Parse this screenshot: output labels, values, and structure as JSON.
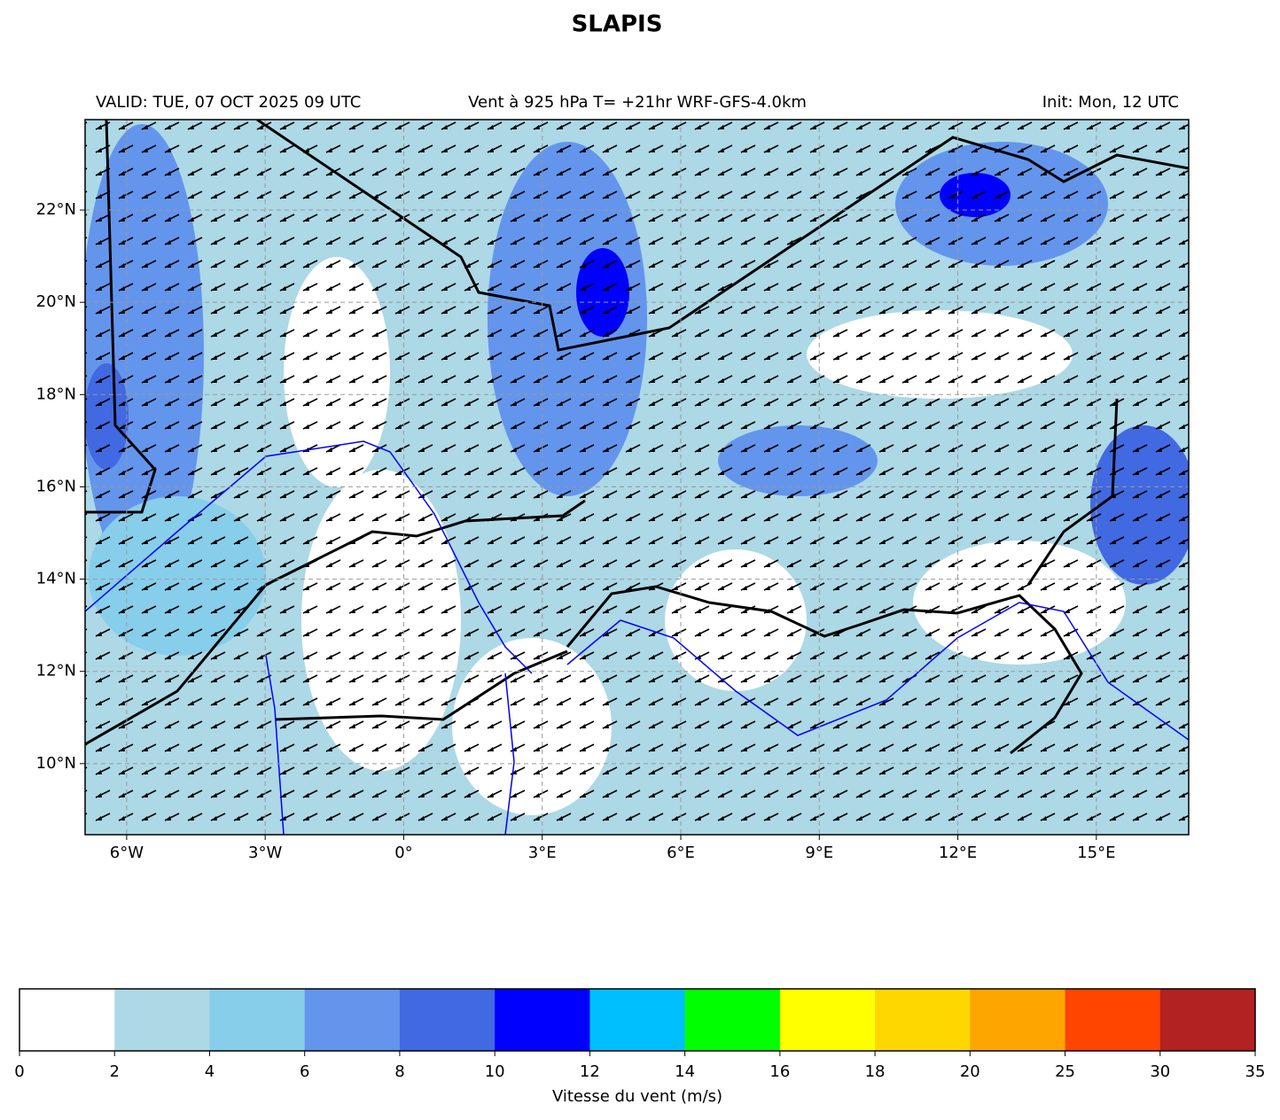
{
  "chart_data": {
    "type": "map",
    "title": "SLAPIS",
    "subtitle_left": "VALID: TUE, 07 OCT 2025 09 UTC",
    "subtitle_center": "Vent à 925 hPa T= +21hr  WRF-GFS-4.0km",
    "subtitle_right": "Init: Mon, 12 UTC",
    "xlim": [
      -6.9,
      17
    ],
    "ylim": [
      8.46,
      23.96
    ],
    "xticks": [
      {
        "value": -6,
        "label": "6°W"
      },
      {
        "value": -3,
        "label": "3°W"
      },
      {
        "value": 0,
        "label": "0°"
      },
      {
        "value": 3,
        "label": "3°E"
      },
      {
        "value": 6,
        "label": "6°E"
      },
      {
        "value": 9,
        "label": "9°E"
      },
      {
        "value": 12,
        "label": "12°E"
      },
      {
        "value": 15,
        "label": "15°E"
      }
    ],
    "yticks": [
      {
        "value": 10,
        "label": "10°N"
      },
      {
        "value": 12,
        "label": "12°N"
      },
      {
        "value": 14,
        "label": "14°N"
      },
      {
        "value": 16,
        "label": "16°N"
      },
      {
        "value": 18,
        "label": "18°N"
      },
      {
        "value": 20,
        "label": "20°N"
      },
      {
        "value": 22,
        "label": "22°N"
      }
    ],
    "grid": true,
    "colorbar": {
      "label": "Vitesse du vent (m/s)",
      "bounds": [
        0,
        2,
        4,
        6,
        8,
        10,
        12,
        14,
        16,
        18,
        20,
        25,
        30,
        35
      ],
      "colors": [
        "#ffffff",
        "#add8e6",
        "#87ceeb",
        "#6495ed",
        "#4169e1",
        "#0000ff",
        "#00bfff",
        "#00ff00",
        "#ffff00",
        "#ffd700",
        "#ffa500",
        "#ff4500",
        "#b22222"
      ]
    }
  }
}
